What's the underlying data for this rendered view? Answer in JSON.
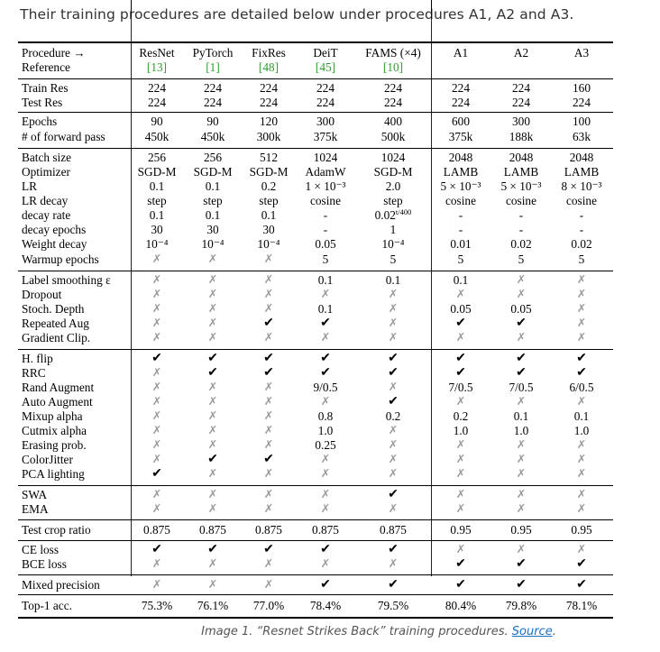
{
  "intro": "Their training procedures are detailed below under procedures A1, A2 and A3.",
  "caption": {
    "text": "Image 1. “Resnet Strikes Back” training procedures. ",
    "link": "Source",
    "end": "."
  },
  "header_labels": [
    "Procedure →",
    "Reference"
  ],
  "procedures": [
    {
      "name": "ResNet",
      "ref": "[13]"
    },
    {
      "name": "PyTorch",
      "ref": "[1]"
    },
    {
      "name": "FixRes",
      "ref": "[48]"
    },
    {
      "name": "DeiT",
      "ref": "[45]"
    },
    {
      "name": "FAMS (×4)",
      "ref": "[10]"
    },
    {
      "name": "A1",
      "ref": ""
    },
    {
      "name": "A2",
      "ref": ""
    },
    {
      "name": "A3",
      "ref": ""
    }
  ],
  "rows": [
    {
      "label": "Train Res",
      "v": [
        "224",
        "224",
        "224",
        "224",
        "224",
        "224",
        "224",
        "160"
      ]
    },
    {
      "label": "Test Res",
      "v": [
        "224",
        "224",
        "224",
        "224",
        "224",
        "224",
        "224",
        "224"
      ]
    },
    {
      "label": "Epochs",
      "v": [
        "90",
        "90",
        "120",
        "300",
        "400",
        "600",
        "300",
        "100"
      ]
    },
    {
      "label": "# of forward pass",
      "v": [
        "450k",
        "450k",
        "300k",
        "375k",
        "500k",
        "375k",
        "188k",
        "63k"
      ]
    },
    {
      "label": "Batch size",
      "v": [
        "256",
        "256",
        "512",
        "1024",
        "1024",
        "2048",
        "2048",
        "2048"
      ]
    },
    {
      "label": "Optimizer",
      "v": [
        "SGD-M",
        "SGD-M",
        "SGD-M",
        "AdamW",
        "SGD-M",
        "LAMB",
        "LAMB",
        "LAMB"
      ]
    },
    {
      "label": "LR",
      "v": [
        "0.1",
        "0.1",
        "0.2",
        "1 × 10⁻³",
        "2.0",
        "5 × 10⁻³",
        "5 × 10⁻³",
        "8 × 10⁻³"
      ]
    },
    {
      "label": "LR decay",
      "v": [
        "step",
        "step",
        "step",
        "cosine",
        "step",
        "cosine",
        "cosine",
        "cosine"
      ]
    },
    {
      "label": "decay rate",
      "v": [
        "0.1",
        "0.1",
        "0.1",
        "-",
        "0.02^t/400",
        "-",
        "-",
        "-"
      ]
    },
    {
      "label": "decay epochs",
      "v": [
        "30",
        "30",
        "30",
        "-",
        "1",
        "-",
        "-",
        "-"
      ]
    },
    {
      "label": "Weight decay",
      "v": [
        "10⁻⁴",
        "10⁻⁴",
        "10⁻⁴",
        "0.05",
        "10⁻⁴",
        "0.01",
        "0.02",
        "0.02"
      ]
    },
    {
      "label": "Warmup epochs",
      "v": [
        "✗",
        "✗",
        "✗",
        "5",
        "5",
        "5",
        "5",
        "5"
      ]
    },
    {
      "label": "Label smoothing ε",
      "v": [
        "✗",
        "✗",
        "✗",
        "0.1",
        "0.1",
        "0.1",
        "✗",
        "✗"
      ]
    },
    {
      "label": "Dropout",
      "v": [
        "✗",
        "✗",
        "✗",
        "✗",
        "✗",
        "✗",
        "✗",
        "✗"
      ]
    },
    {
      "label": "Stoch. Depth",
      "v": [
        "✗",
        "✗",
        "✗",
        "0.1",
        "✗",
        "0.05",
        "0.05",
        "✗"
      ]
    },
    {
      "label": "Repeated Aug",
      "v": [
        "✗",
        "✗",
        "✔",
        "✔",
        "✗",
        "✔",
        "✔",
        "✗"
      ]
    },
    {
      "label": "Gradient Clip.",
      "v": [
        "✗",
        "✗",
        "✗",
        "✗",
        "✗",
        "✗",
        "✗",
        "✗"
      ]
    },
    {
      "label": "H. flip",
      "v": [
        "✔",
        "✔",
        "✔",
        "✔",
        "✔",
        "✔",
        "✔",
        "✔"
      ]
    },
    {
      "label": "RRC",
      "v": [
        "✗",
        "✔",
        "✔",
        "✔",
        "✔",
        "✔",
        "✔",
        "✔"
      ]
    },
    {
      "label": "Rand Augment",
      "v": [
        "✗",
        "✗",
        "✗",
        "9/0.5",
        "✗",
        "7/0.5",
        "7/0.5",
        "6/0.5"
      ]
    },
    {
      "label": "Auto Augment",
      "v": [
        "✗",
        "✗",
        "✗",
        "✗",
        "✔",
        "✗",
        "✗",
        "✗"
      ]
    },
    {
      "label": "Mixup alpha",
      "v": [
        "✗",
        "✗",
        "✗",
        "0.8",
        "0.2",
        "0.2",
        "0.1",
        "0.1"
      ]
    },
    {
      "label": "Cutmix alpha",
      "v": [
        "✗",
        "✗",
        "✗",
        "1.0",
        "✗",
        "1.0",
        "1.0",
        "1.0"
      ]
    },
    {
      "label": "Erasing prob.",
      "v": [
        "✗",
        "✗",
        "✗",
        "0.25",
        "✗",
        "✗",
        "✗",
        "✗"
      ]
    },
    {
      "label": "ColorJitter",
      "v": [
        "✗",
        "✔",
        "✔",
        "✗",
        "✗",
        "✗",
        "✗",
        "✗"
      ]
    },
    {
      "label": "PCA lighting",
      "v": [
        "✔",
        "✗",
        "✗",
        "✗",
        "✗",
        "✗",
        "✗",
        "✗"
      ]
    },
    {
      "label": "SWA",
      "v": [
        "✗",
        "✗",
        "✗",
        "✗",
        "✔",
        "✗",
        "✗",
        "✗"
      ]
    },
    {
      "label": "EMA",
      "v": [
        "✗",
        "✗",
        "✗",
        "✗",
        "✗",
        "✗",
        "✗",
        "✗"
      ]
    },
    {
      "label": "Test crop ratio",
      "v": [
        "0.875",
        "0.875",
        "0.875",
        "0.875",
        "0.875",
        "0.95",
        "0.95",
        "0.95"
      ]
    },
    {
      "label": "CE loss",
      "v": [
        "✔",
        "✔",
        "✔",
        "✔",
        "✔",
        "✗",
        "✗",
        "✗"
      ]
    },
    {
      "label": "BCE loss",
      "v": [
        "✗",
        "✗",
        "✗",
        "✗",
        "✗",
        "✔",
        "✔",
        "✔"
      ]
    },
    {
      "label": "Mixed precision",
      "v": [
        "✗",
        "✗",
        "✗",
        "✔",
        "✔",
        "✔",
        "✔",
        "✔"
      ]
    },
    {
      "label": "Top-1 acc.",
      "v": [
        "75.3%",
        "76.1%",
        "77.0%",
        "78.4%",
        "79.5%",
        "80.4%",
        "79.8%",
        "78.1%"
      ]
    }
  ]
}
